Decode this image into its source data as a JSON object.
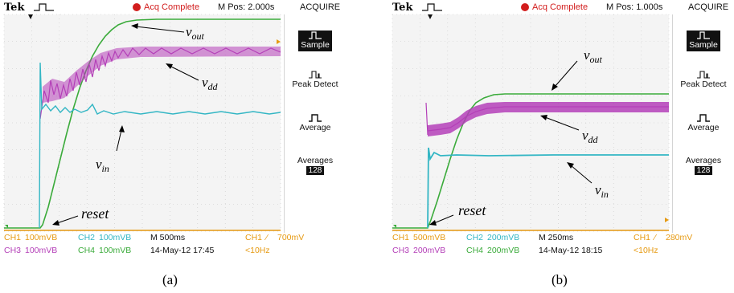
{
  "panels": [
    {
      "brand": "Tek",
      "acq_status": "Acq Complete",
      "mpos": "M Pos: 2.000s",
      "menu_title": "ACQUIRE",
      "menu": [
        {
          "label": "Sample",
          "selected": true,
          "icon": "sample-icon"
        },
        {
          "label": "Peak Detect",
          "selected": false,
          "icon": "peak-detect-icon"
        },
        {
          "label": "Average",
          "selected": false,
          "icon": "average-icon"
        },
        {
          "label": "Averages",
          "value": "128",
          "selected": false
        }
      ],
      "readout": {
        "ch1_label": "CH1",
        "ch1_scale": "100mVB",
        "ch2_label": "CH2",
        "ch2_scale": "100mVB",
        "timebase": "M 500ms",
        "trig_src": "CH1",
        "trig_level": "700mV",
        "ch3_label": "CH3",
        "ch3_scale": "100mVB",
        "ch4_label": "CH4",
        "ch4_scale": "100mVB",
        "datetime": "14-May-12 17:45",
        "freq": "<10Hz"
      },
      "annotations": {
        "vout": "v",
        "vout_sub": "out",
        "vdd": "v",
        "vdd_sub": "dd",
        "vin": "v",
        "vin_sub": "in",
        "reset": "reset"
      },
      "caption": "(a)"
    },
    {
      "brand": "Tek",
      "acq_status": "Acq Complete",
      "mpos": "M Pos: 1.000s",
      "menu_title": "ACQUIRE",
      "menu": [
        {
          "label": "Sample",
          "selected": true,
          "icon": "sample-icon"
        },
        {
          "label": "Peak Detect",
          "selected": false,
          "icon": "peak-detect-icon"
        },
        {
          "label": "Average",
          "selected": false,
          "icon": "average-icon"
        },
        {
          "label": "Averages",
          "value": "128",
          "selected": false
        }
      ],
      "readout": {
        "ch1_label": "CH1",
        "ch1_scale": "500mVB",
        "ch2_label": "CH2",
        "ch2_scale": "200mVB",
        "timebase": "M 250ms",
        "trig_src": "CH1",
        "trig_level": "280mV",
        "ch3_label": "CH3",
        "ch3_scale": "200mVB",
        "ch4_label": "CH4",
        "ch4_scale": "200mVB",
        "datetime": "14-May-12 18:15",
        "freq": "<10Hz"
      },
      "annotations": {
        "vout": "v",
        "vout_sub": "out",
        "vdd": "v",
        "vdd_sub": "dd",
        "vin": "v",
        "vin_sub": "in",
        "reset": "reset"
      },
      "caption": "(b)"
    }
  ],
  "colors": {
    "ch1": "#e69a12",
    "ch2": "#33b6c4",
    "ch3": "#b43fb8",
    "ch4": "#3bab3b",
    "acq": "#d21d1d",
    "grid": "#c8c8c8",
    "screen": "#f4f4f4"
  }
}
